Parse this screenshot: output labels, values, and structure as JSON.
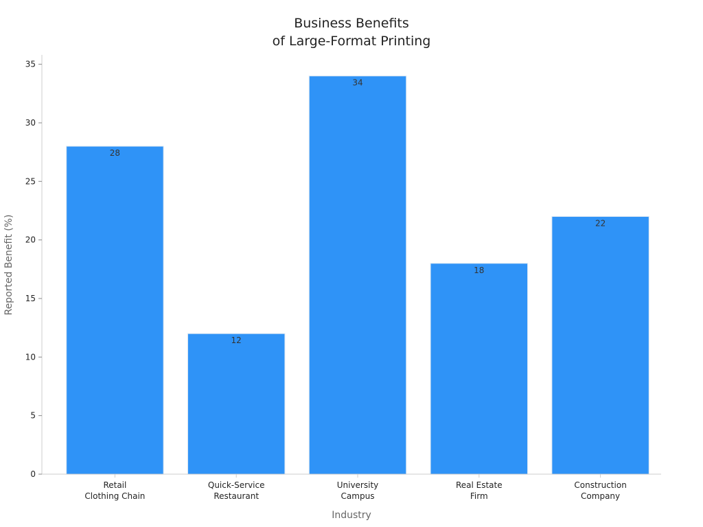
{
  "chart_data": {
    "type": "bar",
    "title_lines": [
      "Business Benefits",
      "of Large-Format Printing"
    ],
    "xlabel": "Industry",
    "ylabel": "Reported Benefit (%)",
    "categories": [
      [
        "Retail",
        "Clothing Chain"
      ],
      [
        "Quick-Service",
        "Restaurant"
      ],
      [
        "University",
        "Campus"
      ],
      [
        "Real Estate",
        "Firm"
      ],
      [
        "Construction",
        "Company"
      ]
    ],
    "values": [
      28,
      12,
      34,
      18,
      22
    ],
    "value_labels": [
      "28",
      "12",
      "34",
      "18",
      "22"
    ],
    "ylim": [
      0,
      35.8
    ],
    "yticks": [
      0,
      5,
      10,
      15,
      20,
      25,
      30,
      35
    ],
    "ytick_labels": [
      "0",
      "5",
      "10",
      "15",
      "20",
      "25",
      "30",
      "35"
    ],
    "grid": false,
    "legend": "none",
    "colors": {
      "bar": "#2f93f7",
      "bar_edge": "#d9e6f2",
      "axis": "#cccccc"
    }
  }
}
